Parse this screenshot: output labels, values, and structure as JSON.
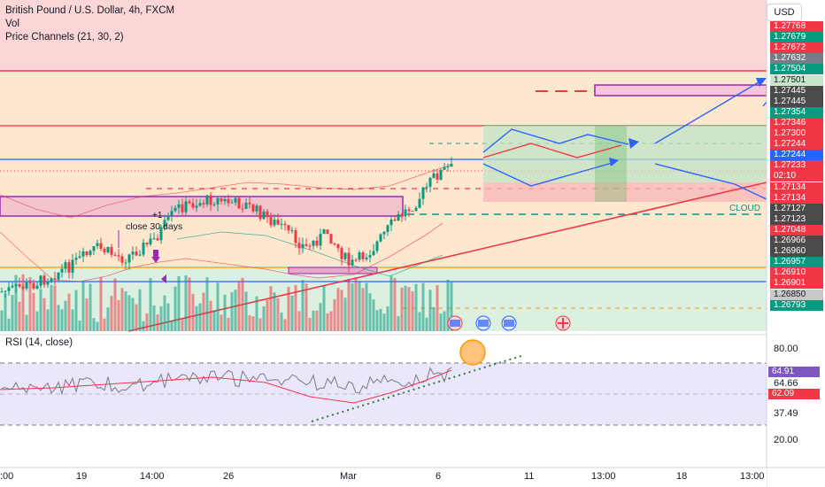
{
  "legend": {
    "symbol": "British Pound / U.S. Dollar, 4h, FXCM",
    "vol": "Vol",
    "channels": "Price Channels (21, 30, 2)"
  },
  "rsi": {
    "label": "RSI (14, close)"
  },
  "currency": "USD",
  "annotations": {
    "close_note": "close 30 days",
    "plus_one": "+1",
    "cloud": "CLOUD",
    "countdown": "02:10"
  },
  "price_labels": [
    {
      "value": "1.27768",
      "bg": "#f23645",
      "fg": "#ffffff"
    },
    {
      "value": "1.27679",
      "bg": "#089981",
      "fg": "#ffffff"
    },
    {
      "value": "1.27672",
      "bg": "#f23645",
      "fg": "#ffffff"
    },
    {
      "value": "1.27632",
      "bg": "#787b86",
      "fg": "#ffffff"
    },
    {
      "value": "1.27504",
      "bg": "#089981",
      "fg": "#ffffff"
    },
    {
      "value": "1.27501",
      "bg": "#c8e6c9",
      "fg": "#131722"
    },
    {
      "value": "1.27445",
      "bg": "#4a4a4a",
      "fg": "#ffffff"
    },
    {
      "value": "1.27445",
      "bg": "#4a4a4a",
      "fg": "#ffffff"
    },
    {
      "value": "1.27354",
      "bg": "#089981",
      "fg": "#ffffff"
    },
    {
      "value": "1.27346",
      "bg": "#f23645",
      "fg": "#ffffff"
    },
    {
      "value": "1.27300",
      "bg": "#f23645",
      "fg": "#ffffff"
    },
    {
      "value": "1.27244",
      "bg": "#f23645",
      "fg": "#ffffff"
    },
    {
      "value": "1.27244",
      "bg": "#2962ff",
      "fg": "#ffffff"
    },
    {
      "value": "1.27233",
      "bg": "#f23645",
      "fg": "#ffffff"
    },
    {
      "value": "02:10",
      "bg": "#f23645",
      "fg": "#ffffff"
    },
    {
      "value": "1.27134",
      "bg": "#f23645",
      "fg": "#ffffff"
    },
    {
      "value": "1.27134",
      "bg": "#f23645",
      "fg": "#ffffff"
    },
    {
      "value": "1.27127",
      "bg": "#4a4a4a",
      "fg": "#ffffff"
    },
    {
      "value": "1.27123",
      "bg": "#4a4a4a",
      "fg": "#ffffff"
    },
    {
      "value": "1.27048",
      "bg": "#f23645",
      "fg": "#ffffff"
    },
    {
      "value": "1.26966",
      "bg": "#4a4a4a",
      "fg": "#ffffff"
    },
    {
      "value": "1.26960",
      "bg": "#4a4a4a",
      "fg": "#ffffff"
    },
    {
      "value": "1.26957",
      "bg": "#089981",
      "fg": "#ffffff"
    },
    {
      "value": "1.26910",
      "bg": "#f23645",
      "fg": "#ffffff"
    },
    {
      "value": "1.26901",
      "bg": "#f23645",
      "fg": "#ffffff"
    },
    {
      "value": "1.26850",
      "bg": "#c8c8c8",
      "fg": "#131722"
    },
    {
      "value": "1.26793",
      "bg": "#089981",
      "fg": "#ffffff"
    }
  ],
  "rsi_axis": [
    "80.00",
    "64.91",
    "64.66",
    "62.09",
    "37.49",
    "20.00"
  ],
  "time_axis": [
    ":00",
    "19",
    "14:00",
    "26",
    "Mar",
    "6",
    "11",
    "13:00",
    "18",
    "13:00"
  ],
  "colors": {
    "up": "#089981",
    "down": "#f23645",
    "blue": "#2962ff",
    "purple": "#9c27b0"
  }
}
